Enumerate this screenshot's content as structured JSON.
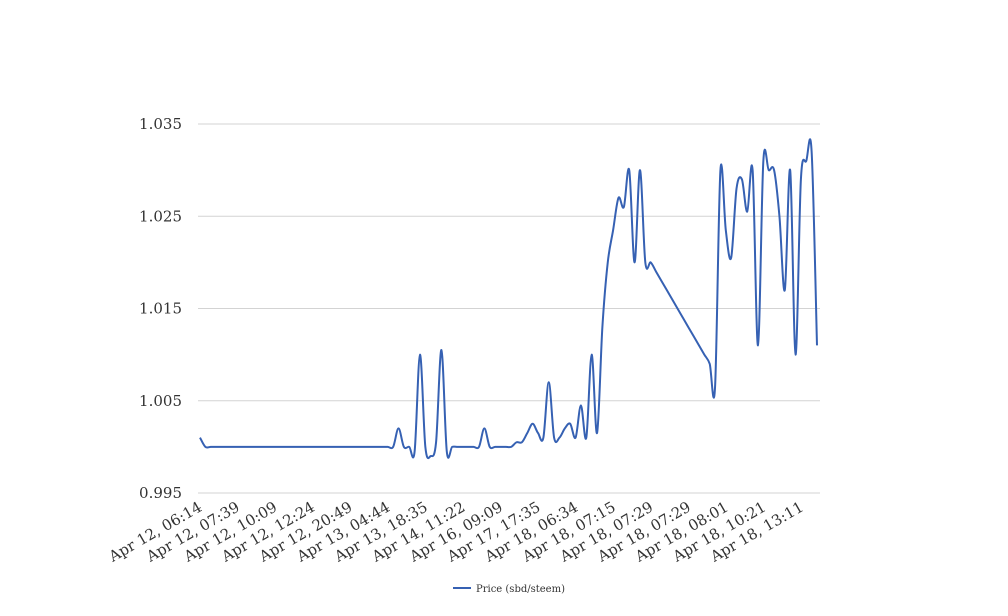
{
  "chart_data": {
    "type": "line",
    "title": "",
    "xlabel": "",
    "ylabel": "",
    "ylim": [
      0.995,
      1.035
    ],
    "yticks": [
      "1.035",
      "1.025",
      "1.015",
      "1.005",
      "0.995"
    ],
    "ytick_values": [
      1.035,
      1.025,
      1.015,
      1.005,
      0.995
    ],
    "xtick_labels": [
      "Apr 12, 06:14",
      "Apr 12, 07:39",
      "Apr 12, 10:09",
      "Apr 12, 12:24",
      "Apr 12, 20:49",
      "Apr 13, 04:44",
      "Apr 13, 18:35",
      "Apr 14, 11:22",
      "Apr 16, 09:09",
      "Apr 17, 17:35",
      "Apr 18, 06:34",
      "Apr 18, 07:15",
      "Apr 18, 07:29",
      "Apr 18, 07:29",
      "Apr 18, 08:01",
      "Apr 18, 10:21",
      "Apr 18, 13:11"
    ],
    "grid": true,
    "legend_position": "bottom",
    "series": [
      {
        "name": "Price (sbd/steem)",
        "color": "#3661b3",
        "values": [
          1.001,
          1.0,
          1.0,
          1.0,
          1.0,
          1.0,
          1.0,
          1.0,
          1.0,
          1.0,
          1.0,
          1.0,
          1.0,
          1.0,
          1.0,
          1.0,
          1.0,
          1.0,
          1.0,
          1.0,
          1.0,
          1.0,
          1.0,
          1.0,
          1.0,
          1.0,
          1.0,
          1.0,
          1.0,
          1.0,
          1.0,
          1.0,
          1.0,
          1.0,
          1.0,
          1.0,
          1.0,
          1.002,
          1.0,
          1.0,
          0.9995,
          1.01,
          1.0,
          0.999,
          1.0005,
          1.0105,
          0.9995,
          1.0,
          1.0,
          1.0,
          1.0,
          1.0,
          1.0,
          1.002,
          1.0,
          1.0,
          1.0,
          1.0,
          1.0,
          1.0005,
          1.0005,
          1.0015,
          1.0025,
          1.0015,
          1.001,
          1.007,
          1.001,
          1.001,
          1.002,
          1.0025,
          1.001,
          1.0045,
          1.001,
          1.01,
          1.0015,
          1.013,
          1.02,
          1.0235,
          1.027,
          1.026,
          1.03,
          1.02,
          1.03,
          1.02,
          1.02,
          1.019,
          1.018,
          1.017,
          1.016,
          1.015,
          1.014,
          1.013,
          1.012,
          1.011,
          1.01,
          1.009,
          1.0065,
          1.03,
          1.0235,
          1.0205,
          1.028,
          1.029,
          1.0255,
          1.03,
          1.011,
          1.031,
          1.03,
          1.03,
          1.025,
          1.017,
          1.03,
          1.01,
          1.029,
          1.031,
          1.032,
          1.011
        ]
      }
    ]
  }
}
